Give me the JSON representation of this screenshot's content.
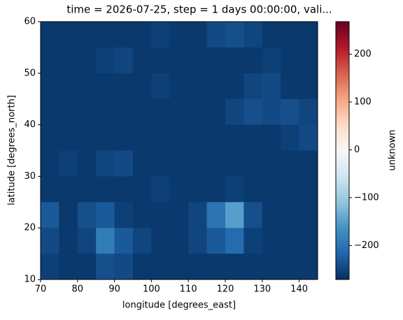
{
  "chart_data": {
    "type": "heatmap",
    "title": "time = 2026-07-25, step = 1 days 00:00:00, vali...",
    "xlabel": "longitude [degrees_east]",
    "ylabel": "latitude [degrees_north]",
    "colorbar_label": "unknown",
    "colormap": "RdBu_r",
    "xlim": [
      70,
      145
    ],
    "xticks": [
      70,
      80,
      90,
      100,
      110,
      120,
      130,
      140
    ],
    "ylim": [
      10,
      60
    ],
    "yticks": [
      10,
      20,
      30,
      40,
      50,
      60
    ],
    "clim": [
      -271,
      268
    ],
    "cticks": [
      {
        "value": -200,
        "label": "−200"
      },
      {
        "value": -100,
        "label": "−100"
      },
      0,
      100,
      200
    ],
    "z": [
      [
        -262,
        -262,
        -262,
        -262,
        -262,
        -262,
        -255,
        -262,
        -262,
        -245,
        -240,
        -250,
        -262,
        -262,
        -262
      ],
      [
        -262,
        -262,
        -262,
        -255,
        -250,
        -262,
        -262,
        -262,
        -262,
        -262,
        -262,
        -262,
        -255,
        -262,
        -262
      ],
      [
        -262,
        -262,
        -262,
        -262,
        -262,
        -262,
        -255,
        -262,
        -262,
        -262,
        -262,
        -250,
        -245,
        -262,
        -262
      ],
      [
        -262,
        -262,
        -262,
        -262,
        -262,
        -262,
        -262,
        -262,
        -262,
        -262,
        -250,
        -240,
        -245,
        -240,
        -250
      ],
      [
        -262,
        -262,
        -262,
        -262,
        -262,
        -262,
        -262,
        -262,
        -262,
        -262,
        -262,
        -262,
        -262,
        -255,
        -245
      ],
      [
        -262,
        -255,
        -262,
        -250,
        -245,
        -262,
        -262,
        -262,
        -262,
        -262,
        -262,
        -262,
        -262,
        -262,
        -262
      ],
      [
        -262,
        -262,
        -262,
        -262,
        -262,
        -262,
        -255,
        -262,
        -262,
        -262,
        -255,
        -262,
        -262,
        -262,
        -262
      ],
      [
        -230,
        -262,
        -240,
        -230,
        -255,
        -262,
        -262,
        -262,
        -250,
        -200,
        -150,
        -240,
        -262,
        -262,
        -262
      ],
      [
        -245,
        -262,
        -250,
        -190,
        -230,
        -250,
        -262,
        -262,
        -250,
        -230,
        -210,
        -255,
        -262,
        -262,
        -262
      ],
      [
        -255,
        -262,
        -262,
        -240,
        -245,
        -262,
        -262,
        -262,
        -262,
        -262,
        -262,
        -262,
        -262,
        -262,
        -262
      ]
    ]
  }
}
